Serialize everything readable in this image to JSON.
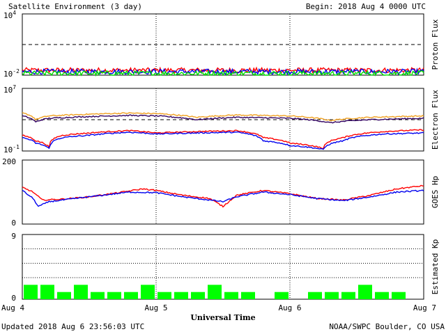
{
  "header": {
    "title": "Satellite Environment (3 day)",
    "begin": "Begin:  2018 Aug 4 0000 UTC"
  },
  "footer": {
    "updated": "Updated 2018 Aug  6 23:56:03 UTC",
    "credit": "NOAA/SWPC Boulder, CO USA"
  },
  "colors": {
    "red": "#ff0000",
    "blue": "#0000ee",
    "green": "#00e000",
    "orange": "#f0a020",
    "purple": "#300060",
    "kp_bar": "#00ff00"
  },
  "chart_data": [
    {
      "type": "line",
      "ylabel": "Proton Flux",
      "log_scale": true,
      "ylim": [
        0.01,
        10000
      ],
      "yticks": [
        {
          "base": "10",
          "exp": "4"
        },
        {
          "base": "10",
          "exp": "-2"
        }
      ],
      "threshold": 10,
      "series": [
        {
          "color": "red",
          "level": 0.03
        },
        {
          "color": "blue",
          "level": 0.022
        },
        {
          "color": "green",
          "level": 0.015
        }
      ]
    },
    {
      "type": "line",
      "ylabel": "Electron Flux",
      "log_scale": true,
      "ylim": [
        0.1,
        10000000
      ],
      "yticks": [
        {
          "base": "10",
          "exp": "7"
        },
        {
          "base": "10",
          "exp": "-1"
        }
      ],
      "threshold": 1000,
      "series": [
        {
          "color": "orange",
          "points": [
            [
              0,
              7000
            ],
            [
              0.1,
              1000
            ],
            [
              0.2,
              3000
            ],
            [
              0.5,
              5000
            ],
            [
              0.8,
              7000
            ],
            [
              1.0,
              6000
            ],
            [
              1.3,
              2000
            ],
            [
              1.6,
              4000
            ],
            [
              2.0,
              3000
            ],
            [
              2.3,
              800
            ],
            [
              2.6,
              2000
            ],
            [
              3.0,
              3000
            ]
          ]
        },
        {
          "color": "purple",
          "points": [
            [
              0,
              3000
            ],
            [
              0.1,
              500
            ],
            [
              0.2,
              1500
            ],
            [
              0.5,
              2500
            ],
            [
              0.8,
              3500
            ],
            [
              1.0,
              3000
            ],
            [
              1.3,
              1000
            ],
            [
              1.6,
              2000
            ],
            [
              2.0,
              1500
            ],
            [
              2.3,
              400
            ],
            [
              2.6,
              1000
            ],
            [
              3.0,
              1500
            ]
          ]
        },
        {
          "color": "red",
          "points": [
            [
              0,
              10
            ],
            [
              0.1,
              2
            ],
            [
              0.2,
              0.3
            ],
            [
              0.3,
              10
            ],
            [
              0.5,
              20
            ],
            [
              0.8,
              40
            ],
            [
              1.0,
              20
            ],
            [
              1.3,
              30
            ],
            [
              1.6,
              40
            ],
            [
              1.8,
              5
            ],
            [
              2.0,
              1
            ],
            [
              2.25,
              0.2
            ],
            [
              2.4,
              5
            ],
            [
              2.7,
              30
            ],
            [
              3.0,
              50
            ]
          ]
        },
        {
          "color": "blue",
          "points": [
            [
              0,
              5
            ],
            [
              0.1,
              1
            ],
            [
              0.2,
              0.2
            ],
            [
              0.3,
              5
            ],
            [
              0.5,
              10
            ],
            [
              0.8,
              25
            ],
            [
              1.0,
              15
            ],
            [
              1.3,
              20
            ],
            [
              1.6,
              25
            ],
            [
              1.8,
              2
            ],
            [
              2.0,
              0.5
            ],
            [
              2.25,
              0.15
            ],
            [
              2.4,
              2
            ],
            [
              2.7,
              15
            ],
            [
              3.0,
              20
            ]
          ]
        }
      ]
    },
    {
      "type": "line",
      "ylabel": "GOES Hp",
      "ylim": [
        0,
        200
      ],
      "yticks": [
        "200",
        "0"
      ],
      "series": [
        {
          "color": "red",
          "points": [
            [
              0,
              115
            ],
            [
              0.08,
              100
            ],
            [
              0.15,
              75
            ],
            [
              0.3,
              78
            ],
            [
              0.5,
              85
            ],
            [
              0.75,
              100
            ],
            [
              0.9,
              110
            ],
            [
              1.0,
              105
            ],
            [
              1.2,
              90
            ],
            [
              1.4,
              80
            ],
            [
              1.5,
              55
            ],
            [
              1.6,
              90
            ],
            [
              1.8,
              105
            ],
            [
              2.0,
              95
            ],
            [
              2.2,
              80
            ],
            [
              2.4,
              75
            ],
            [
              2.6,
              90
            ],
            [
              2.8,
              110
            ],
            [
              3.0,
              120
            ]
          ]
        },
        {
          "color": "blue",
          "points": [
            [
              0,
              105
            ],
            [
              0.08,
              80
            ],
            [
              0.12,
              55
            ],
            [
              0.2,
              70
            ],
            [
              0.4,
              80
            ],
            [
              0.6,
              90
            ],
            [
              0.8,
              100
            ],
            [
              1.0,
              98
            ],
            [
              1.2,
              85
            ],
            [
              1.4,
              75
            ],
            [
              1.5,
              70
            ],
            [
              1.6,
              85
            ],
            [
              1.8,
              100
            ],
            [
              2.0,
              92
            ],
            [
              2.2,
              80
            ],
            [
              2.4,
              73
            ],
            [
              2.6,
              85
            ],
            [
              2.8,
              100
            ],
            [
              3.0,
              105
            ]
          ]
        }
      ]
    },
    {
      "type": "bar",
      "ylabel": "Estimated Kp",
      "ylim": [
        0,
        9
      ],
      "yticks": [
        "9",
        "0"
      ],
      "values": [
        2,
        2,
        1,
        2,
        1,
        1,
        1,
        2,
        1,
        1,
        1,
        2,
        1,
        1,
        0,
        1,
        0,
        1,
        1,
        1,
        2,
        1,
        1,
        0
      ]
    }
  ],
  "x_axis": {
    "xlabel": "Universal Time",
    "ticks": [
      "Aug 4",
      "Aug 5",
      "Aug 6",
      "Aug 7"
    ]
  }
}
